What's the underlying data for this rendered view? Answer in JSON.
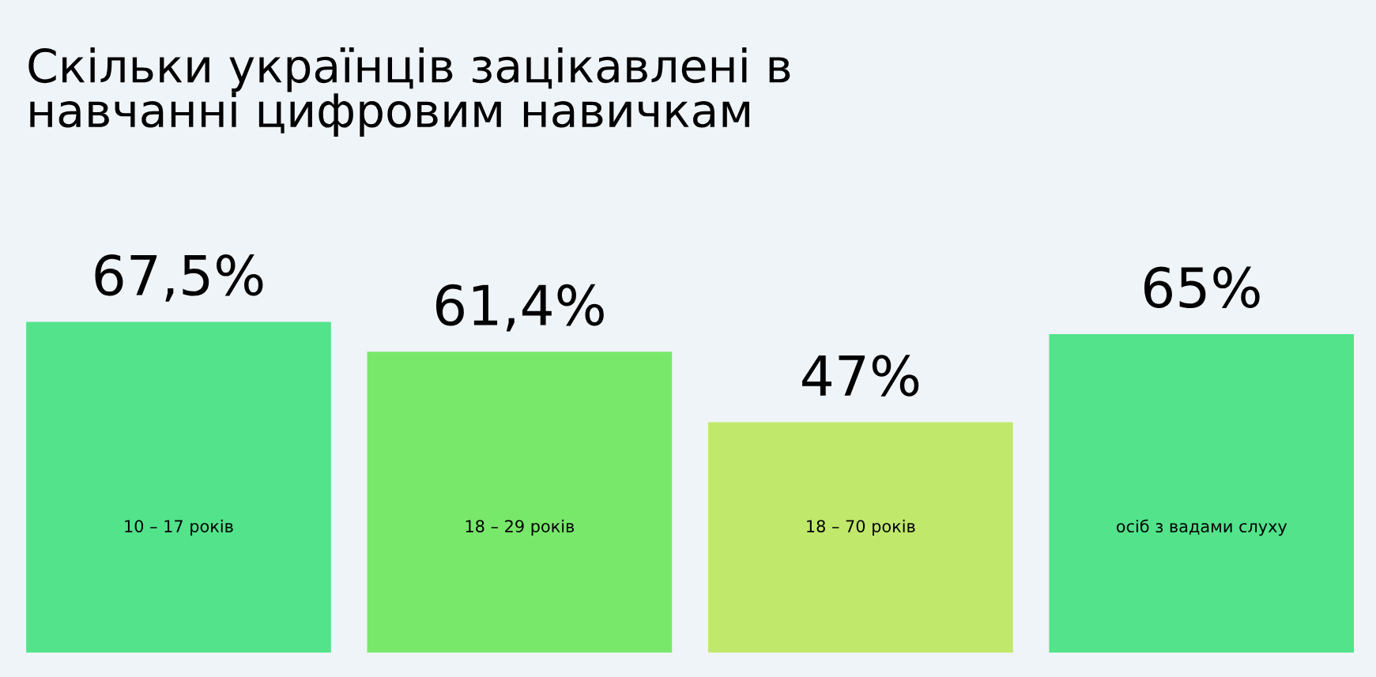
{
  "chart_data": {
    "type": "bar",
    "title": "Скільки українців зацікавлені в\nнавчанні цифровим навичкам",
    "categories": [
      "10 – 17 років",
      "18 – 29 років",
      "18 – 70 років",
      "осіб з вадами слуху"
    ],
    "values": [
      67.5,
      61.4,
      47,
      65
    ],
    "value_labels": [
      "67,5%",
      "61,4%",
      "47%",
      "65%"
    ],
    "colors": [
      "#52e38b",
      "#78e86a",
      "#c0e86a",
      "#52e38b"
    ]
  }
}
